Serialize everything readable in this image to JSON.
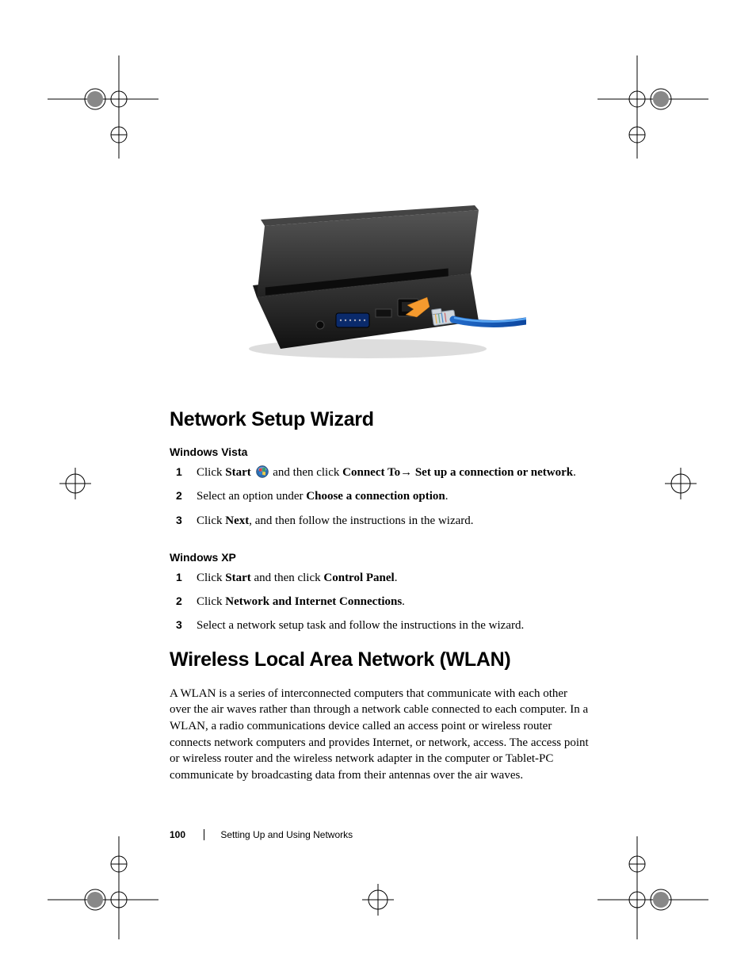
{
  "page": {
    "number": "100",
    "running_title": "Setting Up and Using Networks"
  },
  "hero_image": {
    "alt": "Laptop side view with Ethernet cable being plugged into network port",
    "colors": {
      "body": "#2b2b2b",
      "body_dark": "#1a1a1a",
      "cable_blue": "#1e6bd6",
      "connector": "#bfc9d1",
      "arrow": "#f59a2e",
      "vga_blue": "#0a2a6b"
    }
  },
  "sections": [
    {
      "heading": "Network Setup Wizard",
      "subsections": [
        {
          "subheading": "Windows Vista",
          "steps": [
            {
              "parts": [
                {
                  "t": "Click "
                },
                {
                  "t": "Start ",
                  "bold": true
                },
                {
                  "icon": "vista-orb"
                },
                {
                  "t": " and then click "
                },
                {
                  "t": "Connect To",
                  "bold": true
                },
                {
                  "t": "→ "
                },
                {
                  "t": "Set up a connection or network",
                  "bold": true
                },
                {
                  "t": "."
                }
              ]
            },
            {
              "parts": [
                {
                  "t": "Select an option under "
                },
                {
                  "t": "Choose a connection option",
                  "bold": true
                },
                {
                  "t": "."
                }
              ]
            },
            {
              "parts": [
                {
                  "t": "Click "
                },
                {
                  "t": "Next",
                  "bold": true
                },
                {
                  "t": ", and then follow the instructions in the wizard."
                }
              ]
            }
          ]
        },
        {
          "subheading": "Windows XP",
          "steps": [
            {
              "parts": [
                {
                  "t": "Click "
                },
                {
                  "t": "Start",
                  "bold": true
                },
                {
                  "t": " and then click "
                },
                {
                  "t": "Control Panel",
                  "bold": true
                },
                {
                  "t": "."
                }
              ]
            },
            {
              "parts": [
                {
                  "t": "Click "
                },
                {
                  "t": "Network and Internet Connections",
                  "bold": true
                },
                {
                  "t": "."
                }
              ]
            },
            {
              "parts": [
                {
                  "t": "Select a network setup task and follow the instructions in the wizard."
                }
              ]
            }
          ]
        }
      ]
    },
    {
      "heading": "Wireless Local Area Network (WLAN)",
      "body": "A WLAN is a series of interconnected computers that communicate with each other over the air waves rather than through a network cable connected to each computer. In a WLAN, a radio communications device called an access point or wireless router connects network computers and provides Internet, or network, access. The access point or wireless router and the wireless network adapter in the computer or Tablet-PC communicate by broadcasting data from their antennas over the air waves."
    }
  ]
}
